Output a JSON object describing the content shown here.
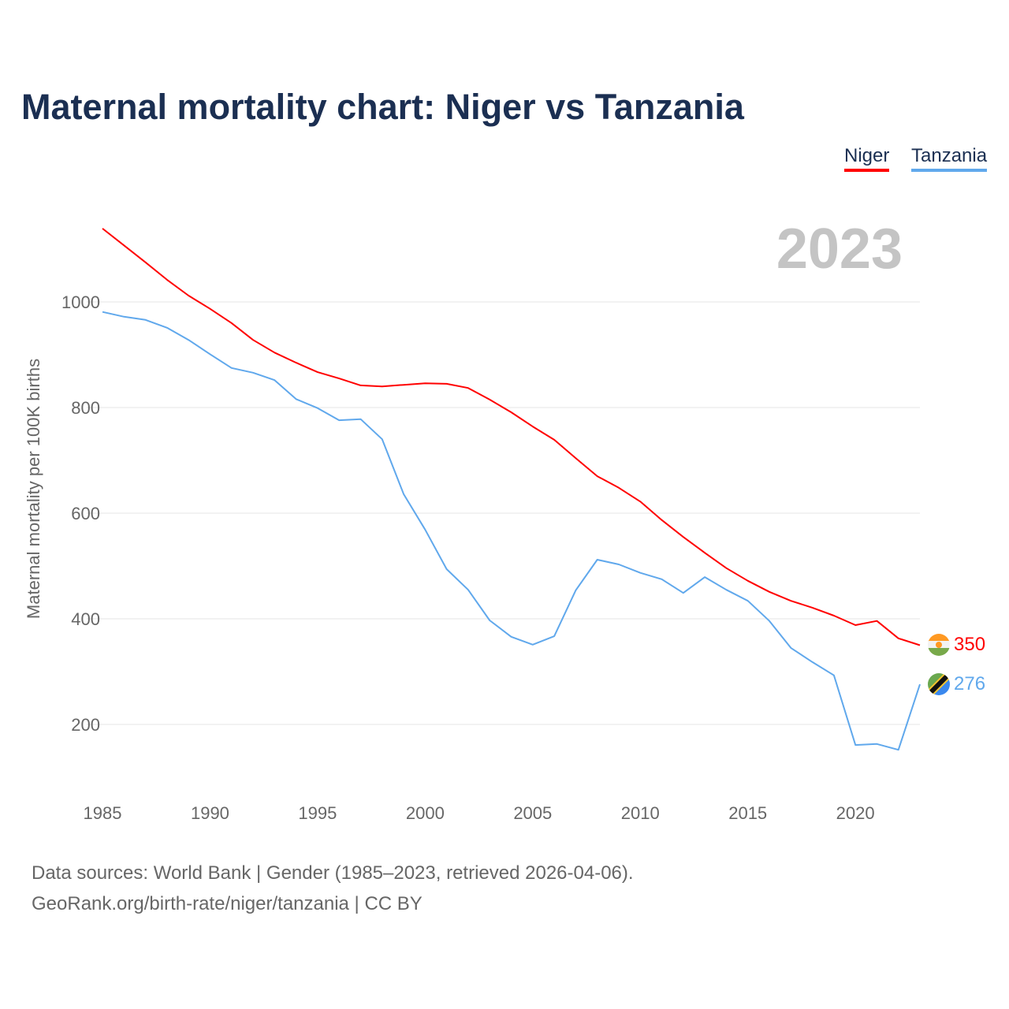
{
  "chart_data": {
    "type": "line",
    "title": "Maternal mortality chart: Niger vs Tanzania",
    "ylabel": "Maternal mortality per 100K births",
    "xlabel": "",
    "year_label": "2023",
    "xlim": [
      1985,
      2023
    ],
    "ylim": [
      100,
      1150
    ],
    "x_ticks": [
      1985,
      1990,
      1995,
      2000,
      2005,
      2010,
      2015,
      2020
    ],
    "y_ticks": [
      200,
      400,
      600,
      800,
      1000
    ],
    "grid": true,
    "legend_placement": "top-right",
    "x": [
      1985,
      1986,
      1987,
      1988,
      1989,
      1990,
      1991,
      1992,
      1993,
      1994,
      1995,
      1996,
      1997,
      1998,
      1999,
      2000,
      2001,
      2002,
      2003,
      2004,
      2005,
      2006,
      2007,
      2008,
      2009,
      2010,
      2011,
      2012,
      2013,
      2014,
      2015,
      2016,
      2017,
      2018,
      2019,
      2020,
      2021,
      2022,
      2023
    ],
    "series": [
      {
        "name": "Niger",
        "color": "#ff0000",
        "end_label": "350",
        "values": [
          1139,
          1107,
          1075,
          1042,
          1012,
          987,
          960,
          928,
          904,
          885,
          867,
          855,
          842,
          840,
          843,
          846,
          845,
          837,
          815,
          791,
          764,
          739,
          704,
          670,
          648,
          622,
          587,
          555,
          525,
          496,
          472,
          451,
          434,
          421,
          406,
          388,
          396,
          363,
          350
        ]
      },
      {
        "name": "Tanzania",
        "color": "#60a8ec",
        "end_label": "276",
        "values": [
          981,
          972,
          966,
          951,
          928,
          901,
          875,
          866,
          852,
          816,
          799,
          776,
          778,
          740,
          636,
          569,
          494,
          455,
          397,
          366,
          351,
          367,
          454,
          512,
          503,
          487,
          475,
          449,
          479,
          455,
          434,
          396,
          345,
          318,
          293,
          161,
          163,
          152,
          276
        ]
      }
    ]
  },
  "footer": {
    "line1": "Data sources: World Bank | Gender (1985–2023, retrieved 2026-04-06).",
    "line2": "GeoRank.org/birth-rate/niger/tanzania | CC BY"
  }
}
